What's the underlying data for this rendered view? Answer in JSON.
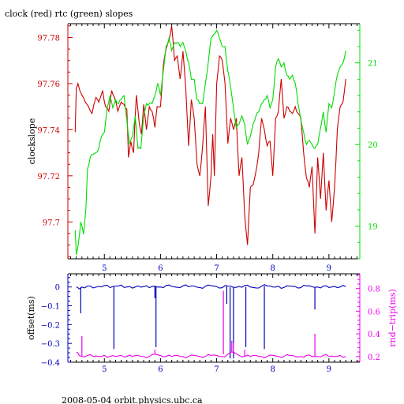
{
  "title": "clock (red) rtc (green) slopes",
  "footer": "2008-05-04 orbit.physics.ubc.ca",
  "colors": {
    "clock": "#cc0000",
    "rtc": "#00dd00",
    "offset": "#0000bb",
    "rtt": "#ee00ee",
    "axis": "#000000"
  },
  "chart_data": [
    {
      "type": "line",
      "title": "clock (red) rtc (green) slopes",
      "xlabel": "",
      "ylabel": "clockslope",
      "y2label": "",
      "xlim": [
        4.35,
        9.55
      ],
      "ylim": [
        97.684,
        97.786
      ],
      "y2lim": [
        18.6,
        21.48
      ],
      "x_ticks": [
        5,
        6,
        7,
        8,
        9
      ],
      "y_ticks": [
        97.7,
        97.72,
        97.74,
        97.76,
        97.78
      ],
      "y_tick_labels": [
        "97.7",
        "97.72",
        "97.74",
        "97.76",
        "97.78"
      ],
      "y2_ticks": [
        19,
        20,
        21
      ],
      "y2_tick_labels": [
        "19",
        "20",
        "21"
      ],
      "grid": false,
      "series": [
        {
          "name": "clock",
          "axis": "left",
          "color": "#cc0000",
          "x": [
            4.48,
            4.5,
            4.53,
            4.6,
            4.66,
            4.72,
            4.78,
            4.85,
            4.9,
            4.97,
            5.02,
            5.08,
            5.13,
            5.18,
            5.24,
            5.3,
            5.35,
            5.4,
            5.43,
            5.47,
            5.52,
            5.57,
            5.62,
            5.66,
            5.7,
            5.75,
            5.8,
            5.85,
            5.9,
            5.94,
            6.0,
            6.05,
            6.1,
            6.15,
            6.2,
            6.25,
            6.3,
            6.35,
            6.4,
            6.45,
            6.5,
            6.55,
            6.6,
            6.65,
            6.7,
            6.75,
            6.8,
            6.85,
            6.9,
            6.93,
            6.96,
            7.0,
            7.05,
            7.1,
            7.15,
            7.2,
            7.25,
            7.3,
            7.35,
            7.4,
            7.45,
            7.5,
            7.55,
            7.6,
            7.65,
            7.7,
            7.75,
            7.8,
            7.85,
            7.9,
            7.95,
            8.0,
            8.05,
            8.1,
            8.15,
            8.2,
            8.25,
            8.3,
            8.35,
            8.4,
            8.45,
            8.5,
            8.55,
            8.6,
            8.65,
            8.7,
            8.75,
            8.8,
            8.85,
            8.9,
            8.95,
            9.0,
            9.05,
            9.1,
            9.15,
            9.2,
            9.25,
            9.3
          ],
          "y": [
            97.739,
            97.758,
            97.76,
            97.755,
            97.752,
            97.75,
            97.747,
            97.754,
            97.752,
            97.757,
            97.75,
            97.748,
            97.757,
            97.754,
            97.748,
            97.752,
            97.751,
            97.749,
            97.728,
            97.735,
            97.73,
            97.755,
            97.743,
            97.738,
            97.751,
            97.74,
            97.75,
            97.748,
            97.741,
            97.75,
            97.75,
            97.768,
            97.775,
            97.779,
            97.785,
            97.77,
            97.772,
            97.762,
            97.774,
            97.758,
            97.733,
            97.753,
            97.745,
            97.725,
            97.72,
            97.733,
            97.75,
            97.707,
            97.72,
            97.738,
            97.72,
            97.76,
            97.772,
            97.77,
            97.76,
            97.734,
            97.745,
            97.74,
            97.745,
            97.72,
            97.728,
            97.703,
            97.69,
            97.715,
            97.716,
            97.722,
            97.73,
            97.745,
            97.74,
            97.733,
            97.735,
            97.72,
            97.745,
            97.748,
            97.762,
            97.745,
            97.75,
            97.748,
            97.747,
            97.75,
            97.747,
            97.745,
            97.73,
            97.719,
            97.715,
            97.724,
            97.695,
            97.728,
            97.71,
            97.73,
            97.705,
            97.718,
            97.7,
            97.715,
            97.74,
            97.75,
            97.752,
            97.762
          ]
        },
        {
          "name": "rtc",
          "axis": "right",
          "color": "#00dd00",
          "x": [
            4.48,
            4.5,
            4.53,
            4.58,
            4.63,
            4.67,
            4.7,
            4.75,
            4.8,
            4.85,
            4.9,
            4.95,
            5.0,
            5.05,
            5.1,
            5.15,
            5.2,
            5.25,
            5.3,
            5.35,
            5.4,
            5.45,
            5.5,
            5.55,
            5.6,
            5.65,
            5.7,
            5.75,
            5.8,
            5.85,
            5.9,
            5.95,
            6.0,
            6.05,
            6.1,
            6.15,
            6.2,
            6.25,
            6.3,
            6.35,
            6.4,
            6.45,
            6.5,
            6.55,
            6.6,
            6.65,
            6.7,
            6.75,
            6.8,
            6.85,
            6.9,
            6.95,
            7.0,
            7.05,
            7.1,
            7.15,
            7.2,
            7.25,
            7.3,
            7.35,
            7.4,
            7.45,
            7.5,
            7.55,
            7.6,
            7.65,
            7.7,
            7.75,
            7.8,
            7.85,
            7.9,
            7.95,
            8.0,
            8.05,
            8.1,
            8.15,
            8.2,
            8.25,
            8.3,
            8.35,
            8.4,
            8.45,
            8.5,
            8.55,
            8.6,
            8.65,
            8.7,
            8.75,
            8.8,
            8.85,
            8.9,
            8.95,
            9.0,
            9.05,
            9.1,
            9.15,
            9.2,
            9.25,
            9.3
          ],
          "y": [
            18.95,
            18.65,
            18.75,
            19.05,
            18.9,
            19.2,
            19.7,
            19.85,
            19.88,
            19.9,
            19.95,
            20.1,
            20.15,
            20.45,
            20.6,
            20.45,
            20.55,
            20.5,
            20.55,
            20.6,
            20.3,
            20.0,
            20.1,
            20.35,
            19.95,
            19.95,
            20.35,
            20.5,
            20.5,
            20.5,
            20.6,
            20.75,
            20.6,
            20.9,
            21.2,
            21.3,
            21.15,
            21.25,
            21.25,
            21.2,
            21.25,
            21.15,
            21.0,
            20.8,
            20.8,
            20.55,
            20.5,
            20.5,
            20.75,
            21.0,
            21.3,
            21.35,
            21.4,
            21.3,
            21.2,
            21.2,
            20.9,
            20.7,
            20.45,
            20.2,
            20.25,
            20.35,
            20.25,
            20.0,
            20.1,
            20.25,
            20.35,
            20.4,
            20.5,
            20.55,
            20.6,
            20.45,
            20.55,
            20.95,
            21.05,
            20.95,
            21.0,
            20.85,
            20.8,
            20.85,
            20.75,
            20.5,
            20.3,
            20.15,
            20.0,
            20.05,
            20.0,
            19.95,
            20.0,
            20.2,
            20.4,
            20.15,
            20.5,
            20.45,
            20.65,
            20.85,
            20.95,
            21.0,
            21.15
          ]
        }
      ]
    },
    {
      "type": "line",
      "xlabel": "",
      "ylabel": "offset(ms)",
      "y2label": "rnd−trip(ms)",
      "xlim": [
        4.35,
        9.55
      ],
      "ylim": [
        -0.4,
        0.07
      ],
      "y2lim": [
        0.15,
        0.93
      ],
      "x_ticks": [
        5,
        6,
        7,
        8,
        9
      ],
      "y_ticks": [
        0,
        -0.1,
        -0.2,
        -0.3,
        -0.4
      ],
      "y_tick_labels": [
        "0",
        "−0.1",
        "−0.2",
        "−0.3",
        "−0.4"
      ],
      "y2_ticks": [
        0.2,
        0.4,
        0.6,
        0.8
      ],
      "y2_tick_labels": [
        "0.2",
        "0.4",
        "0.6",
        "0.8"
      ],
      "grid": false,
      "series": [
        {
          "name": "offset",
          "axis": "left",
          "color": "#0000bb",
          "x": [
            4.5,
            4.55,
            4.6,
            4.7,
            4.8,
            4.9,
            5.0,
            5.1,
            5.2,
            5.3,
            5.4,
            5.5,
            5.6,
            5.7,
            5.8,
            5.9,
            6.0,
            6.1,
            6.2,
            6.3,
            6.4,
            6.5,
            6.6,
            6.7,
            6.8,
            6.9,
            7.0,
            7.1,
            7.2,
            7.3,
            7.4,
            7.5,
            7.6,
            7.7,
            7.8,
            7.9,
            8.0,
            8.1,
            8.2,
            8.3,
            8.4,
            8.5,
            8.6,
            8.7,
            8.8,
            8.9,
            9.0,
            9.1,
            9.2,
            9.3
          ],
          "y": [
            0.0,
            -0.01,
            0.0,
            0.005,
            -0.005,
            0.003,
            0.008,
            -0.004,
            0.005,
            0.01,
            0.0,
            -0.006,
            0.006,
            0.002,
            -0.004,
            0.004,
            0.0,
            0.008,
            0.003,
            -0.002,
            0.006,
            0.001,
            0.005,
            -0.003,
            0.004,
            0.007,
            0.002,
            -0.004,
            0.005,
            -0.002,
            0.003,
            0.008,
            0.0,
            -0.005,
            0.004,
            0.006,
            0.0,
            0.004,
            -0.003,
            0.005,
            0.002,
            -0.004,
            0.006,
            0.001,
            0.0,
            0.005,
            -0.003,
            0.003,
            0.0,
            0.002
          ],
          "spikes": [
            {
              "x": 4.58,
              "y": -0.14
            },
            {
              "x": 5.17,
              "y": -0.33
            },
            {
              "x": 5.9,
              "y": -0.06
            },
            {
              "x": 5.92,
              "y": -0.32
            },
            {
              "x": 7.18,
              "y": -0.09
            },
            {
              "x": 7.24,
              "y": -0.38
            },
            {
              "x": 7.3,
              "y": -0.38
            },
            {
              "x": 7.52,
              "y": -0.32
            },
            {
              "x": 7.85,
              "y": -0.33
            },
            {
              "x": 8.75,
              "y": -0.12
            }
          ]
        },
        {
          "name": "rnd−trip",
          "axis": "right",
          "color": "#ee00ee",
          "x": [
            4.5,
            4.55,
            4.6,
            4.7,
            4.8,
            4.9,
            5.0,
            5.1,
            5.2,
            5.3,
            5.4,
            5.5,
            5.6,
            5.7,
            5.8,
            5.9,
            6.0,
            6.1,
            6.2,
            6.3,
            6.4,
            6.5,
            6.6,
            6.7,
            6.8,
            6.9,
            7.0,
            7.1,
            7.2,
            7.3,
            7.4,
            7.5,
            7.6,
            7.7,
            7.8,
            7.9,
            8.0,
            8.1,
            8.2,
            8.3,
            8.4,
            8.5,
            8.6,
            8.7,
            8.8,
            8.9,
            9.0,
            9.1,
            9.2,
            9.3
          ],
          "y": [
            0.24,
            0.21,
            0.2,
            0.21,
            0.2,
            0.2,
            0.21,
            0.2,
            0.2,
            0.21,
            0.2,
            0.2,
            0.21,
            0.2,
            0.2,
            0.22,
            0.21,
            0.2,
            0.2,
            0.21,
            0.2,
            0.2,
            0.21,
            0.2,
            0.2,
            0.21,
            0.21,
            0.2,
            0.22,
            0.24,
            0.21,
            0.2,
            0.2,
            0.21,
            0.2,
            0.2,
            0.21,
            0.2,
            0.2,
            0.21,
            0.2,
            0.2,
            0.21,
            0.2,
            0.2,
            0.21,
            0.2,
            0.2,
            0.21,
            0.2
          ],
          "spikes": [
            {
              "x": 4.6,
              "y": 0.38
            },
            {
              "x": 5.9,
              "y": 0.26
            },
            {
              "x": 7.12,
              "y": 0.78
            },
            {
              "x": 7.27,
              "y": 0.34
            },
            {
              "x": 7.3,
              "y": 0.32
            },
            {
              "x": 7.5,
              "y": 0.26
            },
            {
              "x": 8.75,
              "y": 0.4
            }
          ]
        }
      ]
    }
  ]
}
